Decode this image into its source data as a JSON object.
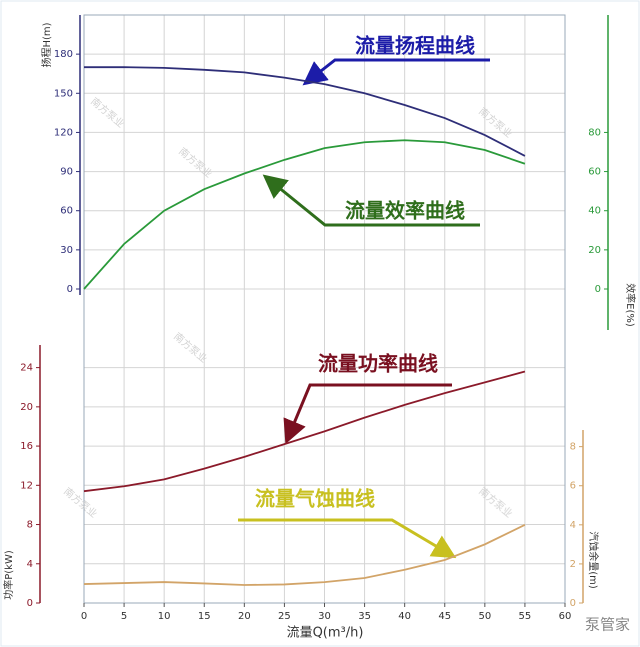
{
  "chart_data": {
    "type": "line",
    "xlabel": "流量Q(m³/h)",
    "ylabel": "扬程H(m)",
    "y2label": "效率E(%)",
    "y3label": "功率P(kW)",
    "y4label": "汽蚀余量(m)",
    "x": [
      0,
      5,
      10,
      15,
      20,
      25,
      30,
      35,
      40,
      45,
      50,
      55
    ],
    "xlim": [
      0,
      60
    ],
    "xticks": [
      0,
      5,
      10,
      15,
      20,
      25,
      30,
      35,
      40,
      45,
      50,
      55,
      60
    ],
    "ylim": [
      0,
      210
    ],
    "yticks": [
      0,
      30,
      60,
      90,
      120,
      150,
      180
    ],
    "y2lim": [
      0,
      140
    ],
    "y2ticks": [
      0,
      20,
      40,
      60,
      80
    ],
    "y3lim": [
      0,
      26
    ],
    "y3ticks": [
      0,
      4,
      8,
      12,
      16,
      20,
      24
    ],
    "y4lim": [
      0,
      8.8
    ],
    "y4ticks": [
      0,
      2,
      4,
      6,
      8
    ],
    "grid": true,
    "series": [
      {
        "name": "流量扬程曲线",
        "color": "#2e2e78",
        "axis": "y",
        "values": [
          170,
          170,
          169.5,
          168,
          166,
          162,
          157,
          150,
          141,
          131,
          118,
          102
        ]
      },
      {
        "name": "流量效率曲线",
        "color": "#2a9a3a",
        "axis": "y2",
        "values": [
          0,
          23,
          40,
          51,
          59,
          66,
          72,
          75,
          76,
          75,
          71,
          64
        ]
      },
      {
        "name": "流量功率曲线",
        "color": "#8b1a2a",
        "axis": "y3",
        "values": [
          11.4,
          11.9,
          12.6,
          13.7,
          14.9,
          16.2,
          17.5,
          18.9,
          20.2,
          21.4,
          22.5,
          23.6
        ]
      },
      {
        "name": "流量气蚀曲线",
        "color": "#d2a468",
        "axis": "y4",
        "values": [
          0.97,
          1.02,
          1.07,
          1.0,
          0.92,
          0.95,
          1.07,
          1.28,
          1.7,
          2.2,
          3.0,
          4.0
        ]
      }
    ],
    "annotation_colors": [
      "#1c1ca8",
      "#2f6e1c",
      "#7a1020",
      "#c8c020"
    ],
    "watermark": "南方泵业",
    "logo": "泵管家"
  }
}
